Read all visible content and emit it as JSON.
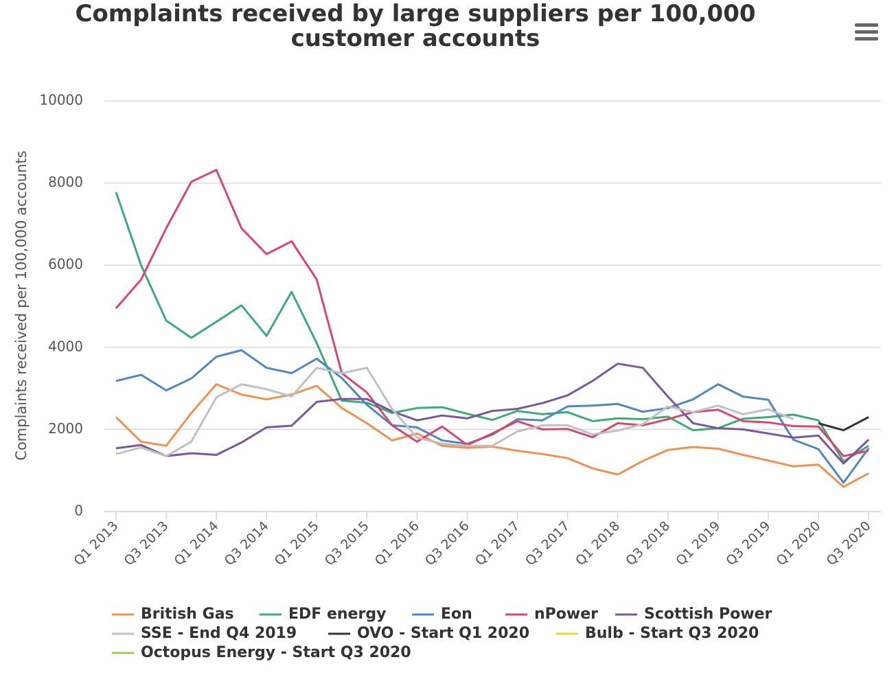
{
  "chart_data": {
    "type": "line",
    "title": "Complaints received by large suppliers per 100,000 customer accounts",
    "y_label": "Complaints received per 100,000 accounts",
    "categories": [
      "Q1 2013",
      null,
      "Q3 2013",
      null,
      "Q1 2014",
      null,
      "Q3 2014",
      null,
      "Q1 2015",
      null,
      "Q3 2015",
      null,
      "Q1 2016",
      null,
      "Q3 2016",
      null,
      "Q1 2017",
      null,
      "Q3 2017",
      null,
      "Q1 2018",
      null,
      "Q3 2018",
      null,
      "Q1 2019",
      null,
      "Q3 2019",
      null,
      "Q1 2020",
      null,
      "Q3 2020"
    ],
    "ylim": [
      0,
      10000
    ],
    "yticks": [
      0,
      2000,
      4000,
      6000,
      8000,
      10000
    ],
    "grid": true,
    "legend": "bottom",
    "series": [
      {
        "name": "British Gas",
        "color": "#f0914f",
        "values": [
          2300,
          1700,
          1600,
          2400,
          3100,
          2850,
          2730,
          2850,
          3060,
          2520,
          2150,
          1730,
          1900,
          1600,
          1550,
          1580,
          1480,
          1400,
          1300,
          1050,
          900,
          1230,
          1500,
          1570,
          1530,
          1380,
          1240,
          1100,
          1140,
          600,
          930
        ]
      },
      {
        "name": "EDF energy",
        "color": "#3cab74",
        "values": [
          7780,
          6000,
          4650,
          4230,
          4620,
          5020,
          4280,
          5350,
          4100,
          2700,
          2650,
          2400,
          2520,
          2540,
          2380,
          2230,
          2450,
          2370,
          2420,
          2200,
          2270,
          2250,
          2310,
          1980,
          2030,
          2260,
          2300,
          2360,
          2220,
          1220,
          1600
        ]
      },
      {
        "name": "Eon",
        "color": "#4e87c4",
        "values": [
          3180,
          3330,
          2950,
          3240,
          3770,
          3930,
          3500,
          3370,
          3720,
          3250,
          2600,
          2100,
          2050,
          1730,
          1650,
          1870,
          2250,
          2220,
          2560,
          2580,
          2620,
          2430,
          2520,
          2730,
          3100,
          2800,
          2720,
          1750,
          1520,
          700,
          1540
        ]
      },
      {
        "name": "nPower",
        "color": "#d9466b",
        "values": [
          4950,
          5650,
          6900,
          8030,
          8320,
          6900,
          6270,
          6580,
          5650,
          3370,
          2900,
          2100,
          1700,
          2070,
          1620,
          1900,
          2200,
          2000,
          2010,
          1810,
          2150,
          2100,
          2250,
          2420,
          2480,
          2200,
          2170,
          2080,
          2070,
          1350,
          1480
        ]
      },
      {
        "name": "Scottish Power",
        "color": "#7b579b",
        "values": [
          1540,
          1620,
          1350,
          1420,
          1380,
          1680,
          2050,
          2090,
          2670,
          2740,
          2740,
          2440,
          2220,
          2340,
          2270,
          2450,
          2500,
          2640,
          2830,
          3180,
          3600,
          3500,
          2800,
          2150,
          2030,
          2000,
          1900,
          1800,
          1850,
          1170,
          1750
        ]
      },
      {
        "name": "SSE - End Q4 2019",
        "color": "#c0c0c4",
        "values": [
          1400,
          1560,
          1350,
          1700,
          2780,
          3100,
          2980,
          2800,
          3500,
          3370,
          3500,
          2500,
          1800,
          1650,
          1600,
          1600,
          1950,
          2100,
          2100,
          1880,
          1970,
          2130,
          2560,
          2420,
          2580,
          2370,
          2490,
          2250,
          null,
          null,
          null
        ]
      },
      {
        "name": "OVO - Start Q1 2020",
        "color": "#333333",
        "values": [
          null,
          null,
          null,
          null,
          null,
          null,
          null,
          null,
          null,
          null,
          null,
          null,
          null,
          null,
          null,
          null,
          null,
          null,
          null,
          null,
          null,
          null,
          null,
          null,
          null,
          null,
          null,
          null,
          2150,
          1980,
          2300
        ]
      },
      {
        "name": "Bulb - Start Q3 2020",
        "color": "#f5d142",
        "values": [
          null,
          null,
          null,
          null,
          null,
          null,
          null,
          null,
          null,
          null,
          null,
          null,
          null,
          null,
          null,
          null,
          null,
          null,
          null,
          null,
          null,
          null,
          null,
          null,
          null,
          null,
          null,
          null,
          null,
          null,
          null
        ]
      },
      {
        "name": "Octopus Energy - Start Q3 2020",
        "color": "#9ccc5b",
        "values": [
          null,
          null,
          null,
          null,
          null,
          null,
          null,
          null,
          null,
          null,
          null,
          null,
          null,
          null,
          null,
          null,
          null,
          null,
          null,
          null,
          null,
          null,
          null,
          null,
          null,
          null,
          null,
          null,
          null,
          null,
          null
        ]
      }
    ]
  }
}
